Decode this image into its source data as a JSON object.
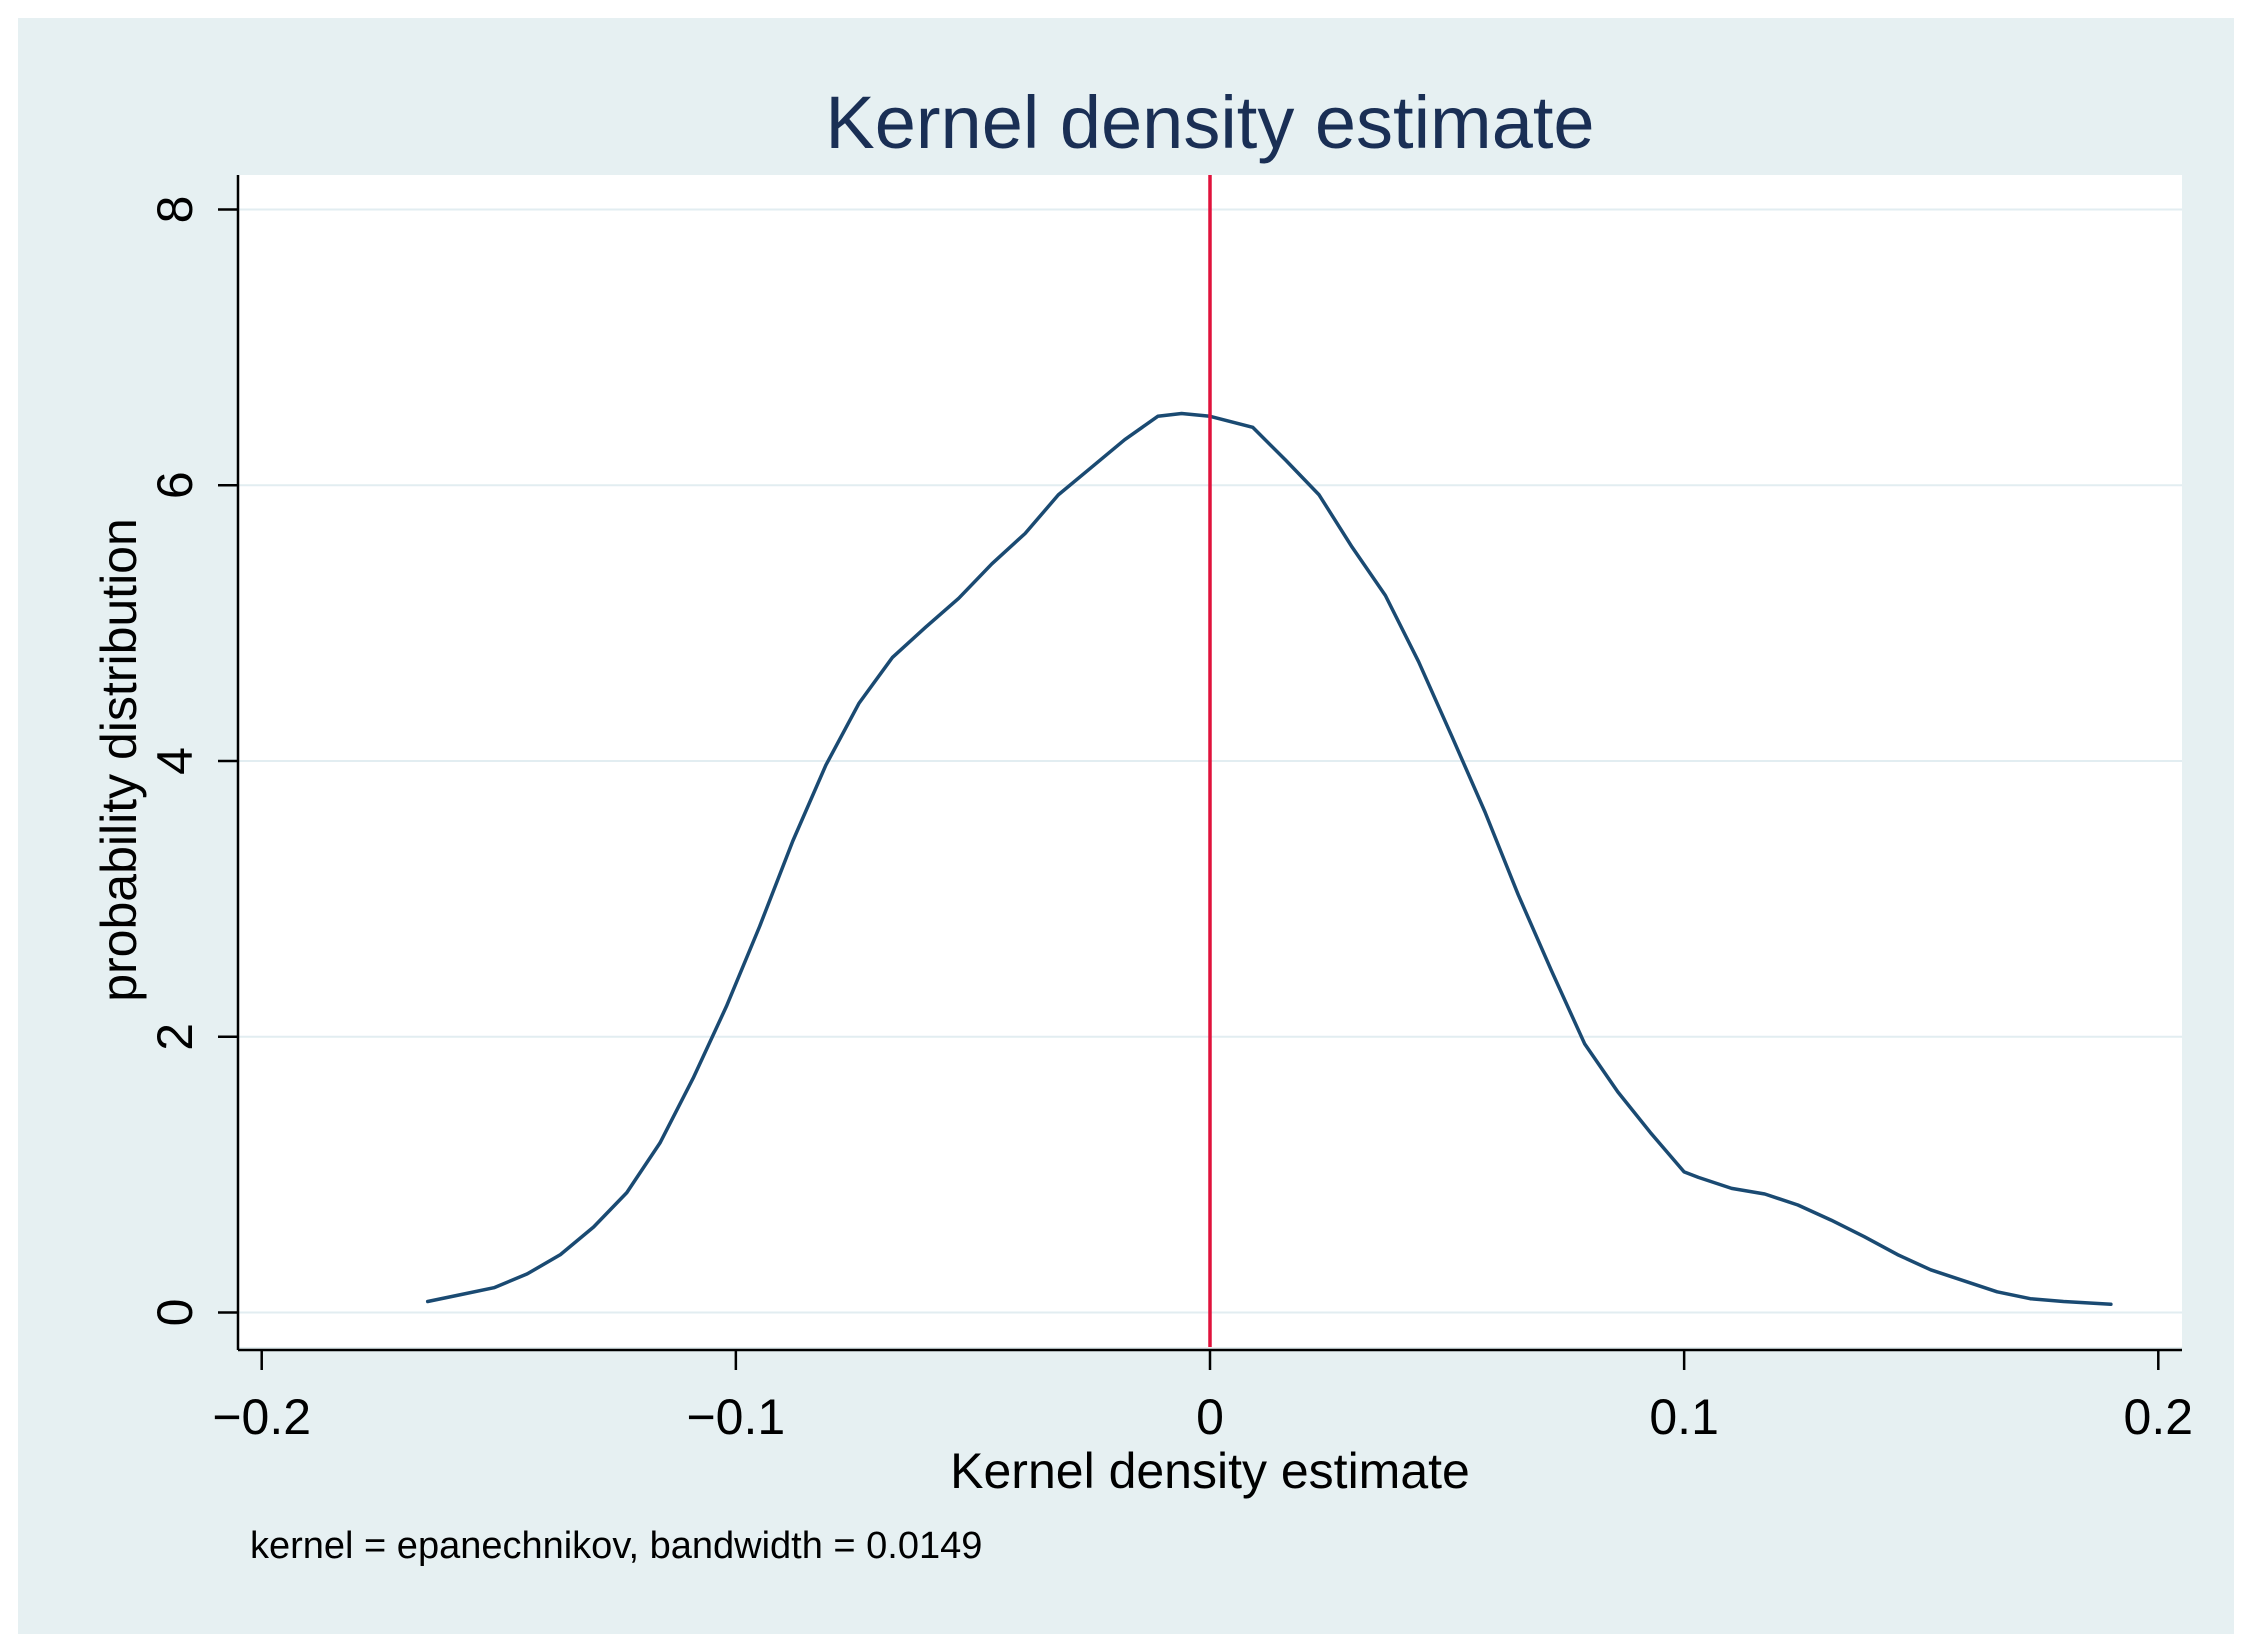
{
  "colors": {
    "outer_background": "#e6f0f2",
    "plot_background": "#ffffff",
    "gridline": "#e2edf1",
    "axis": "#000000",
    "text": "#000000",
    "title": "#1a2f55",
    "curve": "#1a4a72",
    "reference_line": "#e0123c"
  },
  "chart_data": {
    "type": "line",
    "title": "Kernel density estimate",
    "xlabel": "Kernel density estimate",
    "ylabel": "probability distribution",
    "note": "kernel = epanechnikov, bandwidth = 0.0149",
    "xlim": [
      -0.205,
      0.205
    ],
    "ylim": [
      -0.25,
      8.25
    ],
    "x_ticks": [
      -0.2,
      -0.1,
      0,
      0.1,
      0.2
    ],
    "x_tick_labels": [
      "−0.2",
      "−0.1",
      "0",
      "0.1",
      "0.2"
    ],
    "y_ticks": [
      0,
      2,
      4,
      6,
      8
    ],
    "y_tick_labels": [
      "0",
      "2",
      "4",
      "6",
      "8"
    ],
    "grid": true,
    "reference_line": {
      "axis": "x",
      "value": 0
    },
    "series": [
      {
        "name": "density",
        "x": [
          -0.165,
          -0.158,
          -0.151,
          -0.144,
          -0.137,
          -0.13,
          -0.123,
          -0.116,
          -0.109,
          -0.102,
          -0.095,
          -0.088,
          -0.081,
          -0.074,
          -0.067,
          -0.06,
          -0.053,
          -0.046,
          -0.039,
          -0.032,
          -0.025,
          -0.018,
          -0.011,
          -0.006,
          0.0,
          0.009,
          0.016,
          0.023,
          0.03,
          0.037,
          0.044,
          0.051,
          0.058,
          0.065,
          0.072,
          0.079,
          0.086,
          0.093,
          0.1,
          0.103,
          0.11,
          0.117,
          0.124,
          0.131,
          0.138,
          0.145,
          0.152,
          0.159,
          0.166,
          0.173,
          0.18,
          0.19
        ],
        "y": [
          0.08,
          0.13,
          0.18,
          0.28,
          0.42,
          0.62,
          0.87,
          1.23,
          1.7,
          2.22,
          2.8,
          3.42,
          3.97,
          4.42,
          4.75,
          4.97,
          5.18,
          5.43,
          5.65,
          5.93,
          6.13,
          6.33,
          6.5,
          6.52,
          6.5,
          6.42,
          6.18,
          5.93,
          5.55,
          5.2,
          4.72,
          4.18,
          3.63,
          3.03,
          2.48,
          1.95,
          1.6,
          1.3,
          1.02,
          0.98,
          0.9,
          0.86,
          0.78,
          0.67,
          0.55,
          0.42,
          0.31,
          0.23,
          0.15,
          0.1,
          0.08,
          0.06
        ]
      }
    ]
  }
}
